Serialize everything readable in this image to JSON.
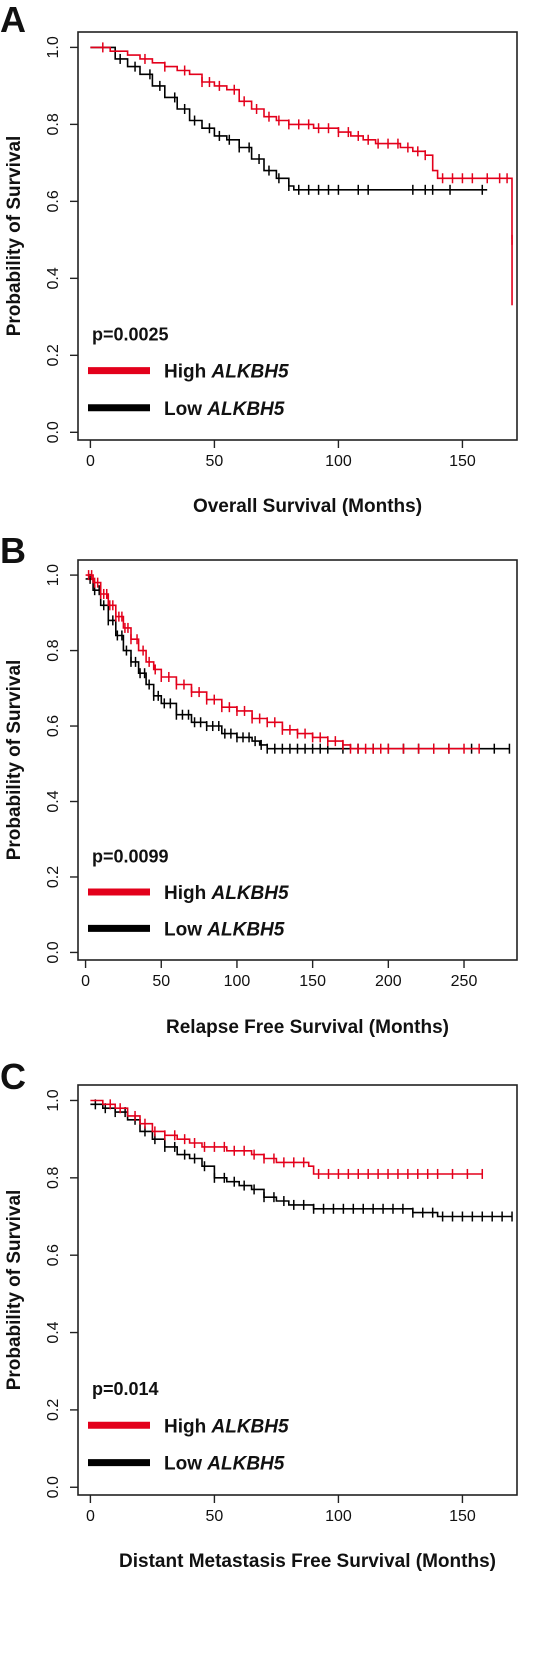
{
  "colors": {
    "high": "#e3001b",
    "low": "#000000",
    "axis": "#222222"
  },
  "chart_data": [
    {
      "type": "line",
      "panel": "A",
      "xlabel": "Overall Survival (Months)",
      "ylabel": "Probability of Survival",
      "xlim": [
        -5,
        172
      ],
      "ylim": [
        -0.02,
        1.04
      ],
      "xticks": [
        0,
        50,
        100,
        150
      ],
      "yticks": [
        0.0,
        0.2,
        0.4,
        0.6,
        0.8,
        1.0
      ],
      "ytick_labels": [
        "0.0",
        "0.2",
        "0.4",
        "0.6",
        "0.8",
        "1.0"
      ],
      "grid": false,
      "pvalue": "p=0.0025",
      "legend": [
        {
          "prefix": "High ",
          "gene": "ALKBH5",
          "color_key": "high"
        },
        {
          "prefix": "Low ",
          "gene": "ALKBH5",
          "color_key": "low"
        }
      ],
      "series": [
        {
          "name": "High ALKBH5",
          "color_key": "high",
          "points": [
            [
              0,
              1.0
            ],
            [
              5,
              1.0
            ],
            [
              8,
              0.99
            ],
            [
              15,
              0.98
            ],
            [
              20,
              0.97
            ],
            [
              25,
              0.96
            ],
            [
              30,
              0.95
            ],
            [
              35,
              0.94
            ],
            [
              40,
              0.93
            ],
            [
              45,
              0.91
            ],
            [
              50,
              0.9
            ],
            [
              55,
              0.89
            ],
            [
              60,
              0.86
            ],
            [
              65,
              0.84
            ],
            [
              70,
              0.82
            ],
            [
              75,
              0.81
            ],
            [
              80,
              0.8
            ],
            [
              85,
              0.8
            ],
            [
              90,
              0.79
            ],
            [
              95,
              0.79
            ],
            [
              100,
              0.78
            ],
            [
              105,
              0.77
            ],
            [
              110,
              0.76
            ],
            [
              115,
              0.75
            ],
            [
              120,
              0.75
            ],
            [
              125,
              0.74
            ],
            [
              130,
              0.73
            ],
            [
              135,
              0.72
            ],
            [
              137,
              0.72
            ],
            [
              138,
              0.68
            ],
            [
              140,
              0.66
            ],
            [
              155,
              0.66
            ],
            [
              168,
              0.66
            ],
            [
              170,
              0.66
            ],
            [
              170,
              0.5
            ]
          ],
          "drop_to": [
            170,
            0.33
          ],
          "censor_x": [
            5,
            22,
            30,
            38,
            45,
            48,
            52,
            58,
            62,
            67,
            72,
            76,
            80,
            84,
            88,
            92,
            96,
            100,
            104,
            108,
            112,
            116,
            120,
            124,
            128,
            132,
            135,
            142,
            146,
            150,
            154,
            160,
            165,
            168,
            170
          ]
        },
        {
          "name": "Low ALKBH5",
          "color_key": "low",
          "points": [
            [
              0,
              1.0
            ],
            [
              10,
              0.97
            ],
            [
              15,
              0.95
            ],
            [
              20,
              0.93
            ],
            [
              25,
              0.9
            ],
            [
              30,
              0.87
            ],
            [
              35,
              0.84
            ],
            [
              40,
              0.81
            ],
            [
              45,
              0.79
            ],
            [
              50,
              0.77
            ],
            [
              55,
              0.76
            ],
            [
              60,
              0.74
            ],
            [
              65,
              0.71
            ],
            [
              70,
              0.68
            ],
            [
              75,
              0.66
            ],
            [
              80,
              0.64
            ],
            [
              82,
              0.63
            ],
            [
              90,
              0.63
            ],
            [
              100,
              0.63
            ],
            [
              130,
              0.63
            ],
            [
              160,
              0.63
            ]
          ],
          "censor_x": [
            12,
            18,
            24,
            28,
            34,
            38,
            42,
            48,
            52,
            56,
            60,
            64,
            68,
            72,
            76,
            80,
            84,
            88,
            92,
            96,
            100,
            108,
            112,
            130,
            135,
            138,
            145,
            158
          ]
        }
      ]
    },
    {
      "type": "line",
      "panel": "B",
      "xlabel": "Relapse Free Survival (Months)",
      "ylabel": "Probability of Survival",
      "xlim": [
        -5,
        285
      ],
      "ylim": [
        -0.02,
        1.04
      ],
      "xticks": [
        0,
        50,
        100,
        150,
        200,
        250
      ],
      "yticks": [
        0.0,
        0.2,
        0.4,
        0.6,
        0.8,
        1.0
      ],
      "ytick_labels": [
        "0.0",
        "0.2",
        "0.4",
        "0.6",
        "0.8",
        "1.0"
      ],
      "grid": false,
      "pvalue": "p=0.0099",
      "legend": [
        {
          "prefix": "High ",
          "gene": "ALKBH5",
          "color_key": "high"
        },
        {
          "prefix": "Low ",
          "gene": "ALKBH5",
          "color_key": "low"
        }
      ],
      "series": [
        {
          "name": "High ALKBH5",
          "color_key": "high",
          "points": [
            [
              0,
              1.0
            ],
            [
              5,
              0.98
            ],
            [
              10,
              0.95
            ],
            [
              15,
              0.92
            ],
            [
              20,
              0.89
            ],
            [
              25,
              0.86
            ],
            [
              30,
              0.83
            ],
            [
              35,
              0.8
            ],
            [
              40,
              0.77
            ],
            [
              45,
              0.75
            ],
            [
              50,
              0.73
            ],
            [
              60,
              0.71
            ],
            [
              70,
              0.69
            ],
            [
              80,
              0.67
            ],
            [
              90,
              0.65
            ],
            [
              100,
              0.64
            ],
            [
              110,
              0.62
            ],
            [
              120,
              0.61
            ],
            [
              130,
              0.59
            ],
            [
              140,
              0.58
            ],
            [
              150,
              0.57
            ],
            [
              160,
              0.56
            ],
            [
              170,
              0.55
            ],
            [
              175,
              0.54
            ],
            [
              200,
              0.54
            ],
            [
              230,
              0.54
            ],
            [
              260,
              0.54
            ]
          ],
          "censor_x": [
            2,
            4,
            6,
            8,
            10,
            12,
            14,
            16,
            18,
            20,
            22,
            24,
            26,
            28,
            30,
            34,
            38,
            42,
            46,
            50,
            55,
            60,
            65,
            70,
            75,
            80,
            85,
            90,
            95,
            100,
            105,
            110,
            115,
            120,
            125,
            130,
            135,
            140,
            145,
            150,
            155,
            160,
            165,
            170,
            175,
            180,
            185,
            190,
            195,
            200,
            210,
            220,
            230,
            240,
            250,
            260
          ]
        },
        {
          "name": "Low ALKBH5",
          "color_key": "low",
          "points": [
            [
              0,
              0.99
            ],
            [
              5,
              0.96
            ],
            [
              10,
              0.92
            ],
            [
              15,
              0.88
            ],
            [
              20,
              0.84
            ],
            [
              25,
              0.8
            ],
            [
              30,
              0.77
            ],
            [
              35,
              0.74
            ],
            [
              40,
              0.71
            ],
            [
              45,
              0.68
            ],
            [
              50,
              0.66
            ],
            [
              60,
              0.63
            ],
            [
              70,
              0.61
            ],
            [
              80,
              0.6
            ],
            [
              90,
              0.58
            ],
            [
              100,
              0.57
            ],
            [
              110,
              0.56
            ],
            [
              115,
              0.55
            ],
            [
              120,
              0.54
            ],
            [
              150,
              0.54
            ],
            [
              200,
              0.54
            ],
            [
              280,
              0.54
            ]
          ],
          "censor_x": [
            3,
            6,
            9,
            12,
            15,
            18,
            21,
            24,
            27,
            30,
            33,
            36,
            39,
            42,
            45,
            48,
            52,
            56,
            60,
            64,
            68,
            72,
            76,
            80,
            84,
            88,
            92,
            96,
            100,
            104,
            108,
            112,
            116,
            120,
            125,
            130,
            135,
            140,
            145,
            150,
            155,
            160,
            170,
            180,
            190,
            200,
            210,
            220,
            230,
            240,
            255,
            270,
            280
          ]
        }
      ]
    },
    {
      "type": "line",
      "panel": "C",
      "xlabel": "Distant Metastasis Free Survival (Months)",
      "ylabel": "Probability of Survival",
      "xlim": [
        -5,
        172
      ],
      "ylim": [
        -0.02,
        1.04
      ],
      "xticks": [
        0,
        50,
        100,
        150
      ],
      "yticks": [
        0.0,
        0.2,
        0.4,
        0.6,
        0.8,
        1.0
      ],
      "ytick_labels": [
        "0.0",
        "0.2",
        "0.4",
        "0.6",
        "0.8",
        "1.0"
      ],
      "grid": false,
      "pvalue": "p=0.014",
      "legend": [
        {
          "prefix": "High ",
          "gene": "ALKBH5",
          "color_key": "high"
        },
        {
          "prefix": "Low ",
          "gene": "ALKBH5",
          "color_key": "low"
        }
      ],
      "series": [
        {
          "name": "High ALKBH5",
          "color_key": "high",
          "points": [
            [
              0,
              1.0
            ],
            [
              5,
              0.99
            ],
            [
              10,
              0.98
            ],
            [
              15,
              0.96
            ],
            [
              20,
              0.94
            ],
            [
              25,
              0.92
            ],
            [
              30,
              0.91
            ],
            [
              35,
              0.9
            ],
            [
              40,
              0.89
            ],
            [
              45,
              0.88
            ],
            [
              50,
              0.88
            ],
            [
              55,
              0.87
            ],
            [
              60,
              0.87
            ],
            [
              65,
              0.86
            ],
            [
              70,
              0.85
            ],
            [
              75,
              0.84
            ],
            [
              85,
              0.84
            ],
            [
              88,
              0.83
            ],
            [
              90,
              0.81
            ],
            [
              100,
              0.81
            ],
            [
              130,
              0.81
            ],
            [
              158,
              0.81
            ]
          ],
          "censor_x": [
            8,
            12,
            18,
            22,
            26,
            30,
            34,
            38,
            42,
            46,
            50,
            54,
            58,
            62,
            66,
            70,
            74,
            78,
            82,
            86,
            92,
            96,
            100,
            104,
            108,
            112,
            116,
            120,
            124,
            128,
            132,
            136,
            140,
            146,
            152,
            158
          ]
        },
        {
          "name": "Low ALKBH5",
          "color_key": "low",
          "points": [
            [
              0,
              0.99
            ],
            [
              5,
              0.98
            ],
            [
              10,
              0.97
            ],
            [
              15,
              0.95
            ],
            [
              20,
              0.92
            ],
            [
              25,
              0.9
            ],
            [
              30,
              0.88
            ],
            [
              35,
              0.86
            ],
            [
              40,
              0.85
            ],
            [
              45,
              0.83
            ],
            [
              50,
              0.8
            ],
            [
              55,
              0.79
            ],
            [
              60,
              0.78
            ],
            [
              65,
              0.77
            ],
            [
              70,
              0.75
            ],
            [
              75,
              0.74
            ],
            [
              80,
              0.73
            ],
            [
              90,
              0.72
            ],
            [
              100,
              0.72
            ],
            [
              110,
              0.72
            ],
            [
              120,
              0.72
            ],
            [
              130,
              0.71
            ],
            [
              140,
              0.7
            ],
            [
              170,
              0.7
            ]
          ],
          "censor_x": [
            2,
            6,
            10,
            14,
            18,
            22,
            26,
            30,
            34,
            38,
            42,
            46,
            50,
            54,
            58,
            62,
            66,
            70,
            74,
            78,
            82,
            86,
            90,
            94,
            98,
            102,
            106,
            110,
            114,
            118,
            122,
            126,
            130,
            134,
            138,
            142,
            146,
            150,
            154,
            158,
            162,
            166,
            170
          ]
        }
      ]
    }
  ]
}
